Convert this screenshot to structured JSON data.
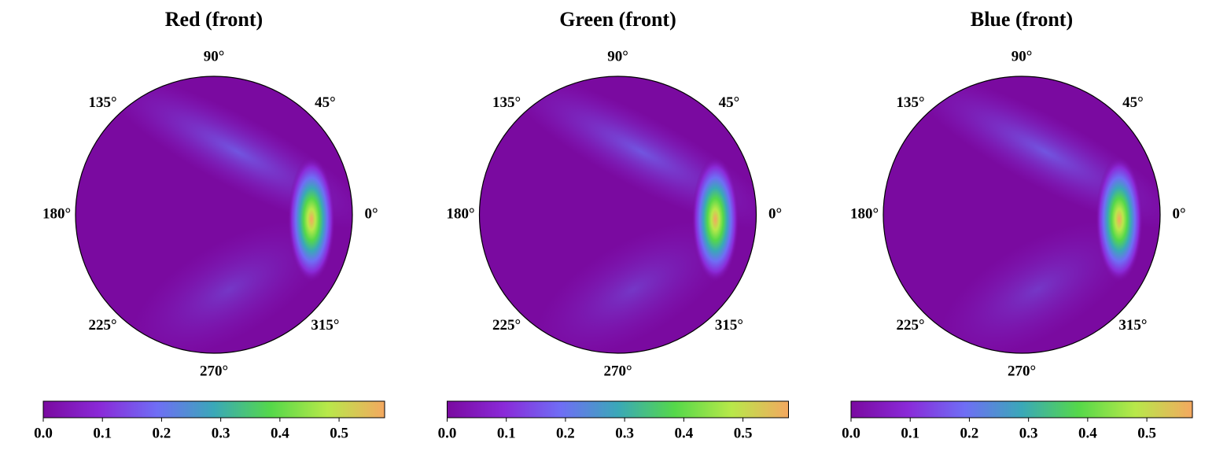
{
  "chart_data": [
    {
      "type": "polar_heatmap",
      "title": "Red (front)",
      "thetaticks": [
        {
          "value": 0,
          "label": "0°"
        },
        {
          "value": 45,
          "label": "45°"
        },
        {
          "value": 90,
          "label": "90°"
        },
        {
          "value": 135,
          "label": "135°"
        },
        {
          "value": 180,
          "label": "180°"
        },
        {
          "value": 225,
          "label": "225°"
        },
        {
          "value": 270,
          "label": "270°"
        },
        {
          "value": 315,
          "label": "315°"
        }
      ],
      "clim": [
        0,
        0.577
      ],
      "cticks": [
        {
          "value": 0,
          "label": "0.0"
        },
        0.1,
        0.2,
        0.3,
        0.4,
        0.5
      ],
      "colormap": [
        "#7a0aa0",
        "#8a2ad8",
        "#6f6ef5",
        "#3aa8b8",
        "#55d84a",
        "#b8e84a",
        "#f4a860"
      ]
    },
    {
      "type": "polar_heatmap",
      "title": "Green (front)",
      "thetaticks": [
        {
          "value": 0,
          "label": "0°"
        },
        {
          "value": 45,
          "label": "45°"
        },
        {
          "value": 90,
          "label": "90°"
        },
        {
          "value": 135,
          "label": "135°"
        },
        {
          "value": 180,
          "label": "180°"
        },
        {
          "value": 225,
          "label": "225°"
        },
        {
          "value": 270,
          "label": "270°"
        },
        {
          "value": 315,
          "label": "315°"
        }
      ],
      "clim": [
        0,
        0.577
      ],
      "cticks": [
        {
          "value": 0,
          "label": "0.0"
        },
        0.1,
        0.2,
        0.3,
        0.4,
        0.5
      ],
      "colormap": [
        "#7a0aa0",
        "#8a2ad8",
        "#6f6ef5",
        "#3aa8b8",
        "#55d84a",
        "#b8e84a",
        "#f4a860"
      ]
    },
    {
      "type": "polar_heatmap",
      "title": "Blue (front)",
      "thetaticks": [
        {
          "value": 0,
          "label": "0°"
        },
        {
          "value": 45,
          "label": "45°"
        },
        {
          "value": 90,
          "label": "90°"
        },
        {
          "value": 135,
          "label": "135°"
        },
        {
          "value": 180,
          "label": "180°"
        },
        {
          "value": 225,
          "label": "225°"
        },
        {
          "value": 270,
          "label": "270°"
        },
        {
          "value": 315,
          "label": "315°"
        }
      ],
      "clim": [
        0,
        0.577
      ],
      "cticks": [
        {
          "value": 0,
          "label": "0.0"
        },
        0.1,
        0.2,
        0.3,
        0.4,
        0.5
      ],
      "colormap": [
        "#7a0aa0",
        "#8a2ad8",
        "#6f6ef5",
        "#3aa8b8",
        "#55d84a",
        "#b8e84a",
        "#f4a860"
      ]
    }
  ]
}
